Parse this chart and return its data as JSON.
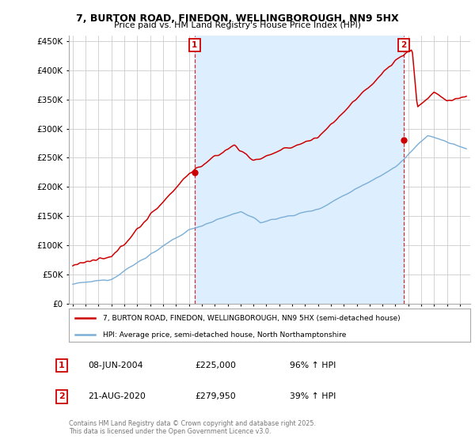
{
  "title_line1": "7, BURTON ROAD, FINEDON, WELLINGBOROUGH, NN9 5HX",
  "title_line2": "Price paid vs. HM Land Registry's House Price Index (HPI)",
  "sale1_date_num": 2004.44,
  "sale1_price": 225000,
  "sale1_label": "08-JUN-2004",
  "sale1_pct": "96% ↑ HPI",
  "sale2_date_num": 2020.64,
  "sale2_price": 279950,
  "sale2_label": "21-AUG-2020",
  "sale2_pct": "39% ↑ HPI",
  "legend_line1": "7, BURTON ROAD, FINEDON, WELLINGBOROUGH, NN9 5HX (semi-detached house)",
  "legend_line2": "HPI: Average price, semi-detached house, North Northamptonshire",
  "footer": "Contains HM Land Registry data © Crown copyright and database right 2025.\nThis data is licensed under the Open Government Licence v3.0.",
  "red_color": "#cc0000",
  "blue_color": "#7aaed6",
  "shade_color": "#ddeeff",
  "ylim_max": 460000,
  "ylim_min": 0,
  "xmin": 1994.7,
  "xmax": 2025.8
}
